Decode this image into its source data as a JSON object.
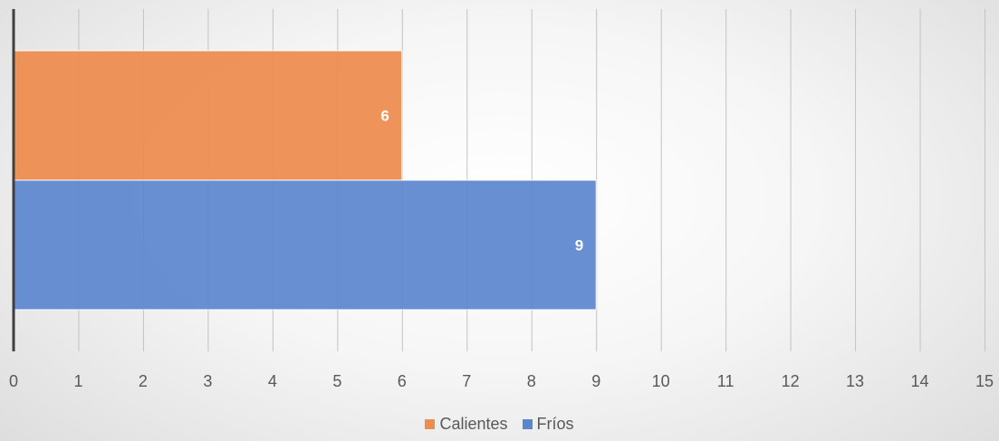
{
  "chart_data": {
    "type": "bar",
    "orientation": "horizontal",
    "title": "",
    "xlabel": "",
    "ylabel": "",
    "categories": [
      "Calientes",
      "Fríos"
    ],
    "values": [
      6,
      9
    ],
    "colors": [
      "#ED8C4F",
      "#5B86CD"
    ],
    "xlim": [
      0,
      15
    ],
    "x_ticks": [
      0,
      1,
      2,
      3,
      4,
      5,
      6,
      7,
      8,
      9,
      10,
      11,
      12,
      13,
      14,
      15
    ],
    "data_labels": [
      "6",
      "9"
    ],
    "grid": "vertical",
    "legend": {
      "position": "bottom",
      "entries": [
        {
          "label": "Calientes",
          "color": "#ED8C4F"
        },
        {
          "label": "Fríos",
          "color": "#5B86CD"
        }
      ]
    }
  }
}
